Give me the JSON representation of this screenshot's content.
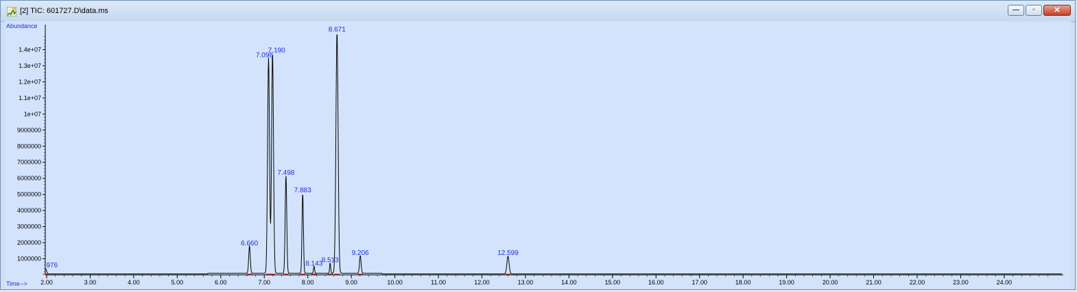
{
  "window": {
    "title": "[2] TIC: 601727.D\\data.ms",
    "controls": [
      {
        "name": "minimize-button",
        "icon": "minimize-icon",
        "glyph": "—"
      },
      {
        "name": "maximize-button",
        "icon": "maximize-icon",
        "glyph": "▫"
      },
      {
        "name": "close-button",
        "icon": "close-icon",
        "glyph": "✕"
      }
    ]
  },
  "chart_data": {
    "type": "line",
    "ylabel": "Abundance",
    "xlabel": "Time-->",
    "xlim": [
      2.0,
      25.0
    ],
    "ylim": [
      0,
      15000000
    ],
    "x_ticks": [
      "2.00",
      "3.00",
      "4.00",
      "5.00",
      "6.00",
      "7.00",
      "8.00",
      "9.00",
      "10.00",
      "11.00",
      "12.00",
      "13.00",
      "14.00",
      "15.00",
      "16.00",
      "17.00",
      "18.00",
      "19.00",
      "20.00",
      "21.00",
      "22.00",
      "23.00",
      "24.00"
    ],
    "x_tick_values": [
      2,
      3,
      4,
      5,
      6,
      7,
      8,
      9,
      10,
      11,
      12,
      13,
      14,
      15,
      16,
      17,
      18,
      19,
      20,
      21,
      22,
      23,
      24
    ],
    "y_ticks": [
      "1000000",
      "2000000",
      "3000000",
      "4000000",
      "5000000",
      "6000000",
      "7000000",
      "8000000",
      "9000000",
      "1e+07",
      "1.1e+07",
      "1.2e+07",
      "1.3e+07",
      "1.4e+07"
    ],
    "y_tick_values": [
      1000000,
      2000000,
      3000000,
      4000000,
      5000000,
      6000000,
      7000000,
      8000000,
      9000000,
      10000000,
      11000000,
      12000000,
      13000000,
      14000000
    ],
    "peaks": [
      {
        "label": "976",
        "rt": 1.976,
        "height": 350000
      },
      {
        "label": "6.660",
        "rt": 6.66,
        "height": 1700000
      },
      {
        "label": "7.098",
        "rt": 7.098,
        "height": 13400000
      },
      {
        "label": "7.190",
        "rt": 7.19,
        "height": 13700000
      },
      {
        "label": "7.498",
        "rt": 7.498,
        "height": 6100000
      },
      {
        "label": "7.883",
        "rt": 7.883,
        "height": 5000000
      },
      {
        "label": "8.143",
        "rt": 8.143,
        "height": 450000
      },
      {
        "label": "8.513",
        "rt": 8.513,
        "height": 650000
      },
      {
        "label": "8.671",
        "rt": 8.671,
        "height": 15000000
      },
      {
        "label": "9.206",
        "rt": 9.206,
        "height": 1100000
      },
      {
        "label": "12.599",
        "rt": 12.599,
        "height": 1100000
      }
    ],
    "colors": {
      "trace": "#000000",
      "label": "#1f2fd8",
      "baseline": "#d81b1b",
      "axis": "#000000"
    }
  }
}
